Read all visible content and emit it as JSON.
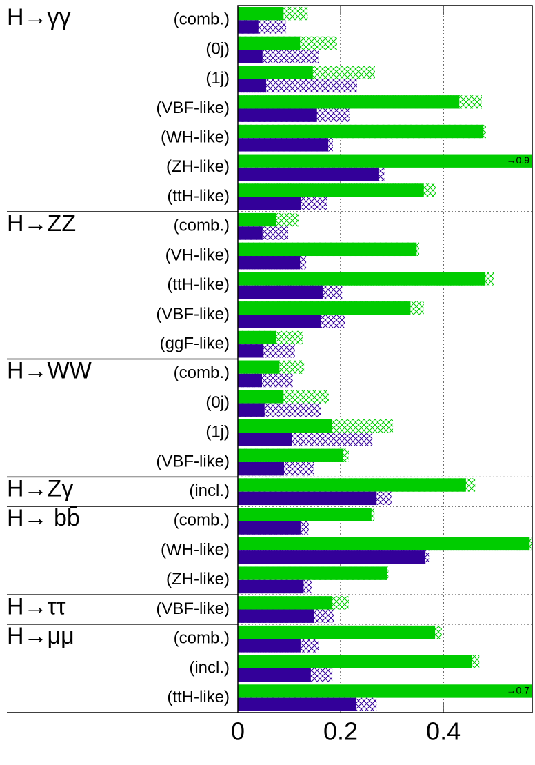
{
  "chart_data": {
    "type": "bar",
    "orientation": "horizontal",
    "groups": [
      {
        "label": "H→γγ",
        "categories": [
          "(comb.)",
          "(0j)",
          "(1j)",
          "(VBF-like)",
          "(WH-like)",
          "(ZH-like)",
          "(ttH-like)"
        ]
      },
      {
        "label": "H→ZZ",
        "categories": [
          "(comb.)",
          "(VH-like)",
          "(ttH-like)",
          "(VBF-like)",
          "(ggF-like)"
        ]
      },
      {
        "label": "H→WW",
        "categories": [
          "(comb.)",
          "(0j)",
          "(1j)",
          "(VBF-like)"
        ]
      },
      {
        "label": "H→Zγ",
        "categories": [
          "(incl.)"
        ]
      },
      {
        "label": "H→ bb̄",
        "categories": [
          "(comb.)",
          "(WH-like)",
          "(ZH-like)"
        ]
      },
      {
        "label": "H→ττ",
        "categories": [
          "(VBF-like)"
        ]
      },
      {
        "label": "H→μμ",
        "categories": [
          "(comb.)",
          "(incl.)",
          "(ttH-like)"
        ]
      }
    ],
    "series": [
      {
        "color": "#00cc00",
        "values": [
          0.089,
          0.121,
          0.146,
          0.431,
          0.478,
          0.9,
          0.362,
          0.074,
          0.348,
          0.482,
          0.336,
          0.075,
          0.081,
          0.089,
          0.183,
          0.204,
          0.444,
          0.26,
          0.568,
          0.29,
          0.184,
          0.384,
          0.455,
          0.7
        ],
        "totals": [
          0.136,
          0.193,
          0.267,
          0.475,
          0.483,
          null,
          0.385,
          0.119,
          0.353,
          0.498,
          0.362,
          0.126,
          0.129,
          0.177,
          0.302,
          0.216,
          0.462,
          0.266,
          0.573,
          0.293,
          0.216,
          0.397,
          0.47,
          null
        ],
        "value_labels": [
          null,
          null,
          null,
          null,
          null,
          "→0.9",
          null,
          null,
          null,
          null,
          null,
          null,
          null,
          null,
          null,
          null,
          null,
          null,
          null,
          null,
          null,
          null,
          null,
          "→0.7"
        ]
      },
      {
        "color": "#330099",
        "values": [
          0.04,
          0.048,
          0.055,
          0.154,
          0.176,
          0.275,
          0.123,
          0.048,
          0.121,
          0.165,
          0.161,
          0.05,
          0.047,
          0.052,
          0.105,
          0.09,
          0.27,
          0.122,
          0.365,
          0.128,
          0.149,
          0.122,
          0.142,
          0.23
        ],
        "totals": [
          0.094,
          0.158,
          0.232,
          0.217,
          0.185,
          0.285,
          0.174,
          0.098,
          0.133,
          0.203,
          0.209,
          0.111,
          0.107,
          0.162,
          0.262,
          0.148,
          0.299,
          0.138,
          0.372,
          0.144,
          0.187,
          0.157,
          0.184,
          0.27
        ]
      }
    ],
    "xlim": [
      0,
      0.573
    ],
    "xticks": [
      0,
      0.2,
      0.4
    ],
    "grid": true
  }
}
